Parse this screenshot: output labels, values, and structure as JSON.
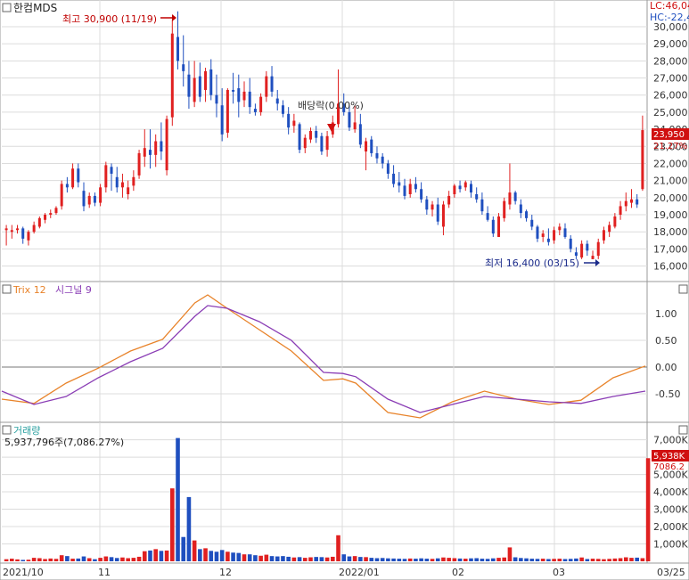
{
  "stock_name": "한컴MDS",
  "right_header": {
    "lc": "LC:46,04",
    "hc": "HC:-22,4"
  },
  "colors": {
    "up": "#e02020",
    "down": "#1f4fbf",
    "trix": "#e8832a",
    "signal": "#8a3db5",
    "grid": "#dcdcdc",
    "annot_up": "#c00000",
    "annot_down": "#1a2a8a"
  },
  "annotations": {
    "high": "최고 30,900 (11/19)",
    "low": "최저 16,400 (03/15)",
    "dividend": "배당락(0.00%)"
  },
  "price_tags": {
    "last": "23,950",
    "pct": "21.27%"
  },
  "trix_panel": {
    "label_trix": "Trix 12",
    "label_signal": "시그널 9"
  },
  "volume_panel": {
    "label": "거래량",
    "info": "5,937,796주(7,086.27%)",
    "tag_last": "5,938K",
    "tag_pct": "7086.2"
  },
  "x_labels": [
    "2021/10",
    "11",
    "12",
    "2022/01",
    "02",
    "03",
    "03/25"
  ],
  "chart_data": [
    {
      "type": "candlestick",
      "title": "한컴MDS",
      "y_ticks": [
        16000,
        17000,
        18000,
        19000,
        20000,
        21000,
        22000,
        23000,
        24000,
        25000,
        26000,
        27000,
        28000,
        29000,
        30000
      ],
      "y_tick_labels": [
        "16,000",
        "17,000",
        "18,000",
        "19,000",
        "20,000",
        "21,000",
        "22,000",
        "23,000",
        "24,000",
        "25,000",
        "26,000",
        "27,000",
        "28,000",
        "29,000",
        "30,000"
      ],
      "ylim": [
        15300,
        31250
      ],
      "ohlc": [
        [
          18100,
          18400,
          17200,
          18200
        ],
        [
          18000,
          18400,
          17600,
          18100
        ],
        [
          18100,
          18400,
          17900,
          18200
        ],
        [
          18200,
          18300,
          17300,
          17600
        ],
        [
          17500,
          18100,
          17200,
          18000
        ],
        [
          18000,
          18600,
          17900,
          18400
        ],
        [
          18300,
          18900,
          18200,
          18800
        ],
        [
          18700,
          19100,
          18500,
          19000
        ],
        [
          19000,
          19300,
          18800,
          19100
        ],
        [
          19100,
          19500,
          19000,
          19400
        ],
        [
          19500,
          21000,
          19300,
          20800
        ],
        [
          20800,
          21200,
          20300,
          20600
        ],
        [
          20600,
          22000,
          20500,
          21700
        ],
        [
          21700,
          22000,
          20600,
          20900
        ],
        [
          20400,
          20900,
          19200,
          19500
        ],
        [
          19600,
          20300,
          19400,
          20100
        ],
        [
          20100,
          20300,
          19500,
          19700
        ],
        [
          19700,
          20800,
          19500,
          20600
        ],
        [
          20600,
          22100,
          20300,
          21900
        ],
        [
          21800,
          22000,
          20400,
          21400
        ],
        [
          21200,
          21800,
          20300,
          20600
        ],
        [
          20600,
          21400,
          20000,
          20900
        ],
        [
          20200,
          21000,
          19900,
          20600
        ],
        [
          20700,
          21600,
          20400,
          21200
        ],
        [
          21300,
          22800,
          21100,
          22600
        ],
        [
          22400,
          24000,
          21800,
          22900
        ],
        [
          22800,
          24000,
          21700,
          22500
        ],
        [
          22500,
          23700,
          21800,
          23300
        ],
        [
          23300,
          24400,
          22200,
          22700
        ],
        [
          21600,
          24800,
          21300,
          24600
        ],
        [
          24700,
          30400,
          24200,
          29600
        ],
        [
          29400,
          30900,
          27500,
          28000
        ],
        [
          27800,
          29500,
          26500,
          27400
        ],
        [
          27200,
          28000,
          25200,
          25900
        ],
        [
          25600,
          28000,
          25300,
          27000
        ],
        [
          27100,
          27900,
          25600,
          25900
        ],
        [
          26300,
          27600,
          25600,
          27400
        ],
        [
          27500,
          28100,
          25700,
          26000
        ],
        [
          26000,
          27200,
          24700,
          25500
        ],
        [
          25400,
          26400,
          23300,
          23700
        ],
        [
          23800,
          26400,
          23500,
          26300
        ],
        [
          26300,
          27300,
          25500,
          26200
        ],
        [
          26400,
          27200,
          24700,
          25600
        ],
        [
          25700,
          26800,
          25300,
          26200
        ],
        [
          26200,
          27000,
          24900,
          25300
        ],
        [
          25200,
          25500,
          24800,
          25000
        ],
        [
          25000,
          26100,
          24800,
          25900
        ],
        [
          25900,
          27400,
          25600,
          27100
        ],
        [
          27100,
          27700,
          25900,
          26200
        ],
        [
          25800,
          26300,
          25100,
          25500
        ],
        [
          25400,
          25700,
          24700,
          24900
        ],
        [
          24900,
          25300,
          23700,
          24100
        ],
        [
          24200,
          24900,
          23800,
          24500
        ],
        [
          24300,
          24400,
          22600,
          22800
        ],
        [
          22900,
          23700,
          22600,
          23500
        ],
        [
          23400,
          24100,
          23200,
          23900
        ],
        [
          23900,
          24200,
          23200,
          23500
        ],
        [
          23600,
          23800,
          22500,
          22700
        ],
        [
          22800,
          23900,
          22400,
          23600
        ],
        [
          23700,
          24800,
          23500,
          24400
        ],
        [
          24300,
          27500,
          24100,
          25500
        ],
        [
          25500,
          26100,
          24800,
          25000
        ],
        [
          25000,
          25400,
          23900,
          24100
        ],
        [
          24000,
          25400,
          23800,
          24400
        ],
        [
          24300,
          24900,
          22900,
          23100
        ],
        [
          22700,
          23500,
          21600,
          23300
        ],
        [
          23400,
          23600,
          22400,
          22600
        ],
        [
          22600,
          23000,
          22000,
          22300
        ],
        [
          22400,
          22600,
          21700,
          22000
        ],
        [
          22000,
          22200,
          21100,
          21400
        ],
        [
          21400,
          21900,
          20600,
          20800
        ],
        [
          20900,
          21500,
          20300,
          20700
        ],
        [
          20700,
          21100,
          19900,
          20100
        ],
        [
          20200,
          21100,
          20000,
          20800
        ],
        [
          20800,
          21200,
          20300,
          20500
        ],
        [
          20500,
          20900,
          19700,
          19900
        ],
        [
          19900,
          20100,
          19000,
          19300
        ],
        [
          19300,
          19800,
          18900,
          19600
        ],
        [
          19600,
          20000,
          18400,
          18600
        ],
        [
          18300,
          19800,
          17800,
          19600
        ],
        [
          19600,
          20400,
          19400,
          20100
        ],
        [
          20200,
          20800,
          20000,
          20700
        ],
        [
          20700,
          21000,
          20300,
          20500
        ],
        [
          20600,
          21000,
          20400,
          20900
        ],
        [
          20800,
          21000,
          20000,
          20300
        ],
        [
          20200,
          20600,
          19700,
          19900
        ],
        [
          19900,
          20300,
          19000,
          19200
        ],
        [
          19100,
          19500,
          18600,
          18700
        ],
        [
          18700,
          18900,
          17700,
          17900
        ],
        [
          17700,
          19100,
          17700,
          18900
        ],
        [
          18800,
          20000,
          18600,
          19800
        ],
        [
          19600,
          22000,
          19300,
          20300
        ],
        [
          20300,
          20400,
          19600,
          19800
        ],
        [
          19600,
          19900,
          18800,
          19100
        ],
        [
          19200,
          19300,
          18600,
          18800
        ],
        [
          18700,
          19000,
          18100,
          18300
        ],
        [
          18300,
          18400,
          17400,
          17600
        ],
        [
          17700,
          18100,
          17400,
          17900
        ],
        [
          17600,
          18200,
          17200,
          17400
        ],
        [
          17500,
          18300,
          17300,
          18100
        ],
        [
          18100,
          18500,
          17800,
          18300
        ],
        [
          18200,
          18500,
          17600,
          17700
        ],
        [
          17600,
          17800,
          16800,
          17000
        ],
        [
          16800,
          17100,
          16400,
          16600
        ],
        [
          16500,
          17500,
          16400,
          17300
        ],
        [
          17300,
          17500,
          16600,
          16900
        ],
        [
          16400,
          16900,
          16400,
          16600
        ],
        [
          16600,
          17600,
          16400,
          17400
        ],
        [
          17500,
          18300,
          17300,
          18100
        ],
        [
          18000,
          18600,
          17700,
          18400
        ],
        [
          18300,
          19100,
          18200,
          18900
        ],
        [
          19000,
          19800,
          18700,
          19500
        ],
        [
          19500,
          20300,
          19200,
          19800
        ],
        [
          19700,
          20500,
          19400,
          19900
        ],
        [
          19900,
          20200,
          19400,
          19600
        ],
        [
          20500,
          24800,
          20400,
          23950
        ]
      ]
    },
    {
      "type": "line",
      "title": "Trix 12 / 시그널 9",
      "y_ticks": [
        -0.5,
        0,
        0.5,
        1.0
      ],
      "y_tick_labels": [
        "-0.50",
        "0.00",
        "0.50",
        "1.00"
      ],
      "ylim": [
        -1.0,
        1.5
      ],
      "series": [
        {
          "name": "Trix 12",
          "x_frac": [
            0,
            0.05,
            0.1,
            0.15,
            0.2,
            0.25,
            0.3,
            0.32,
            0.35,
            0.4,
            0.45,
            0.5,
            0.53,
            0.55,
            0.6,
            0.65,
            0.7,
            0.75,
            0.8,
            0.85,
            0.9,
            0.95,
            1.0
          ],
          "values": [
            -0.6,
            -0.68,
            -0.3,
            -0.02,
            0.3,
            0.52,
            1.2,
            1.35,
            1.1,
            0.7,
            0.3,
            -0.25,
            -0.22,
            -0.3,
            -0.85,
            -0.95,
            -0.65,
            -0.45,
            -0.6,
            -0.7,
            -0.62,
            -0.2,
            0.02
          ]
        },
        {
          "name": "시그널 9",
          "x_frac": [
            0,
            0.05,
            0.1,
            0.15,
            0.2,
            0.25,
            0.3,
            0.32,
            0.35,
            0.4,
            0.45,
            0.5,
            0.53,
            0.55,
            0.6,
            0.65,
            0.7,
            0.75,
            0.8,
            0.85,
            0.9,
            0.95,
            1.0
          ],
          "values": [
            -0.45,
            -0.7,
            -0.55,
            -0.2,
            0.1,
            0.35,
            0.95,
            1.15,
            1.1,
            0.85,
            0.5,
            -0.1,
            -0.12,
            -0.18,
            -0.6,
            -0.85,
            -0.7,
            -0.55,
            -0.6,
            -0.65,
            -0.68,
            -0.55,
            -0.45
          ]
        }
      ]
    },
    {
      "type": "bar",
      "title": "거래량",
      "y_ticks": [
        1000,
        2000,
        3000,
        4000,
        5000,
        6000,
        7000
      ],
      "y_tick_labels": [
        "1,000K",
        "2,000K",
        "3,000K",
        "4,000K",
        "5,000K",
        "6,000K",
        "7,000K"
      ],
      "ylim": [
        0,
        7800
      ],
      "values_k": [
        120,
        150,
        110,
        80,
        90,
        200,
        180,
        130,
        160,
        140,
        350,
        300,
        150,
        160,
        280,
        180,
        120,
        200,
        280,
        240,
        190,
        220,
        180,
        200,
        260,
        580,
        620,
        700,
        600,
        620,
        4200,
        7100,
        1400,
        3700,
        1200,
        700,
        750,
        600,
        550,
        650,
        550,
        500,
        480,
        400,
        400,
        350,
        320,
        380,
        300,
        280,
        300,
        260,
        220,
        240,
        200,
        230,
        250,
        240,
        220,
        260,
        1500,
        400,
        280,
        300,
        250,
        240,
        200,
        180,
        190,
        170,
        160,
        150,
        140,
        160,
        150,
        170,
        150,
        140,
        170,
        220,
        200,
        180,
        160,
        150,
        170,
        180,
        150,
        140,
        170,
        200,
        220,
        800,
        230,
        190,
        170,
        150,
        140,
        150,
        130,
        140,
        150,
        130,
        140,
        160,
        220,
        130,
        150,
        140,
        120,
        140,
        160,
        180,
        230,
        200,
        210,
        180,
        5938
      ]
    }
  ]
}
